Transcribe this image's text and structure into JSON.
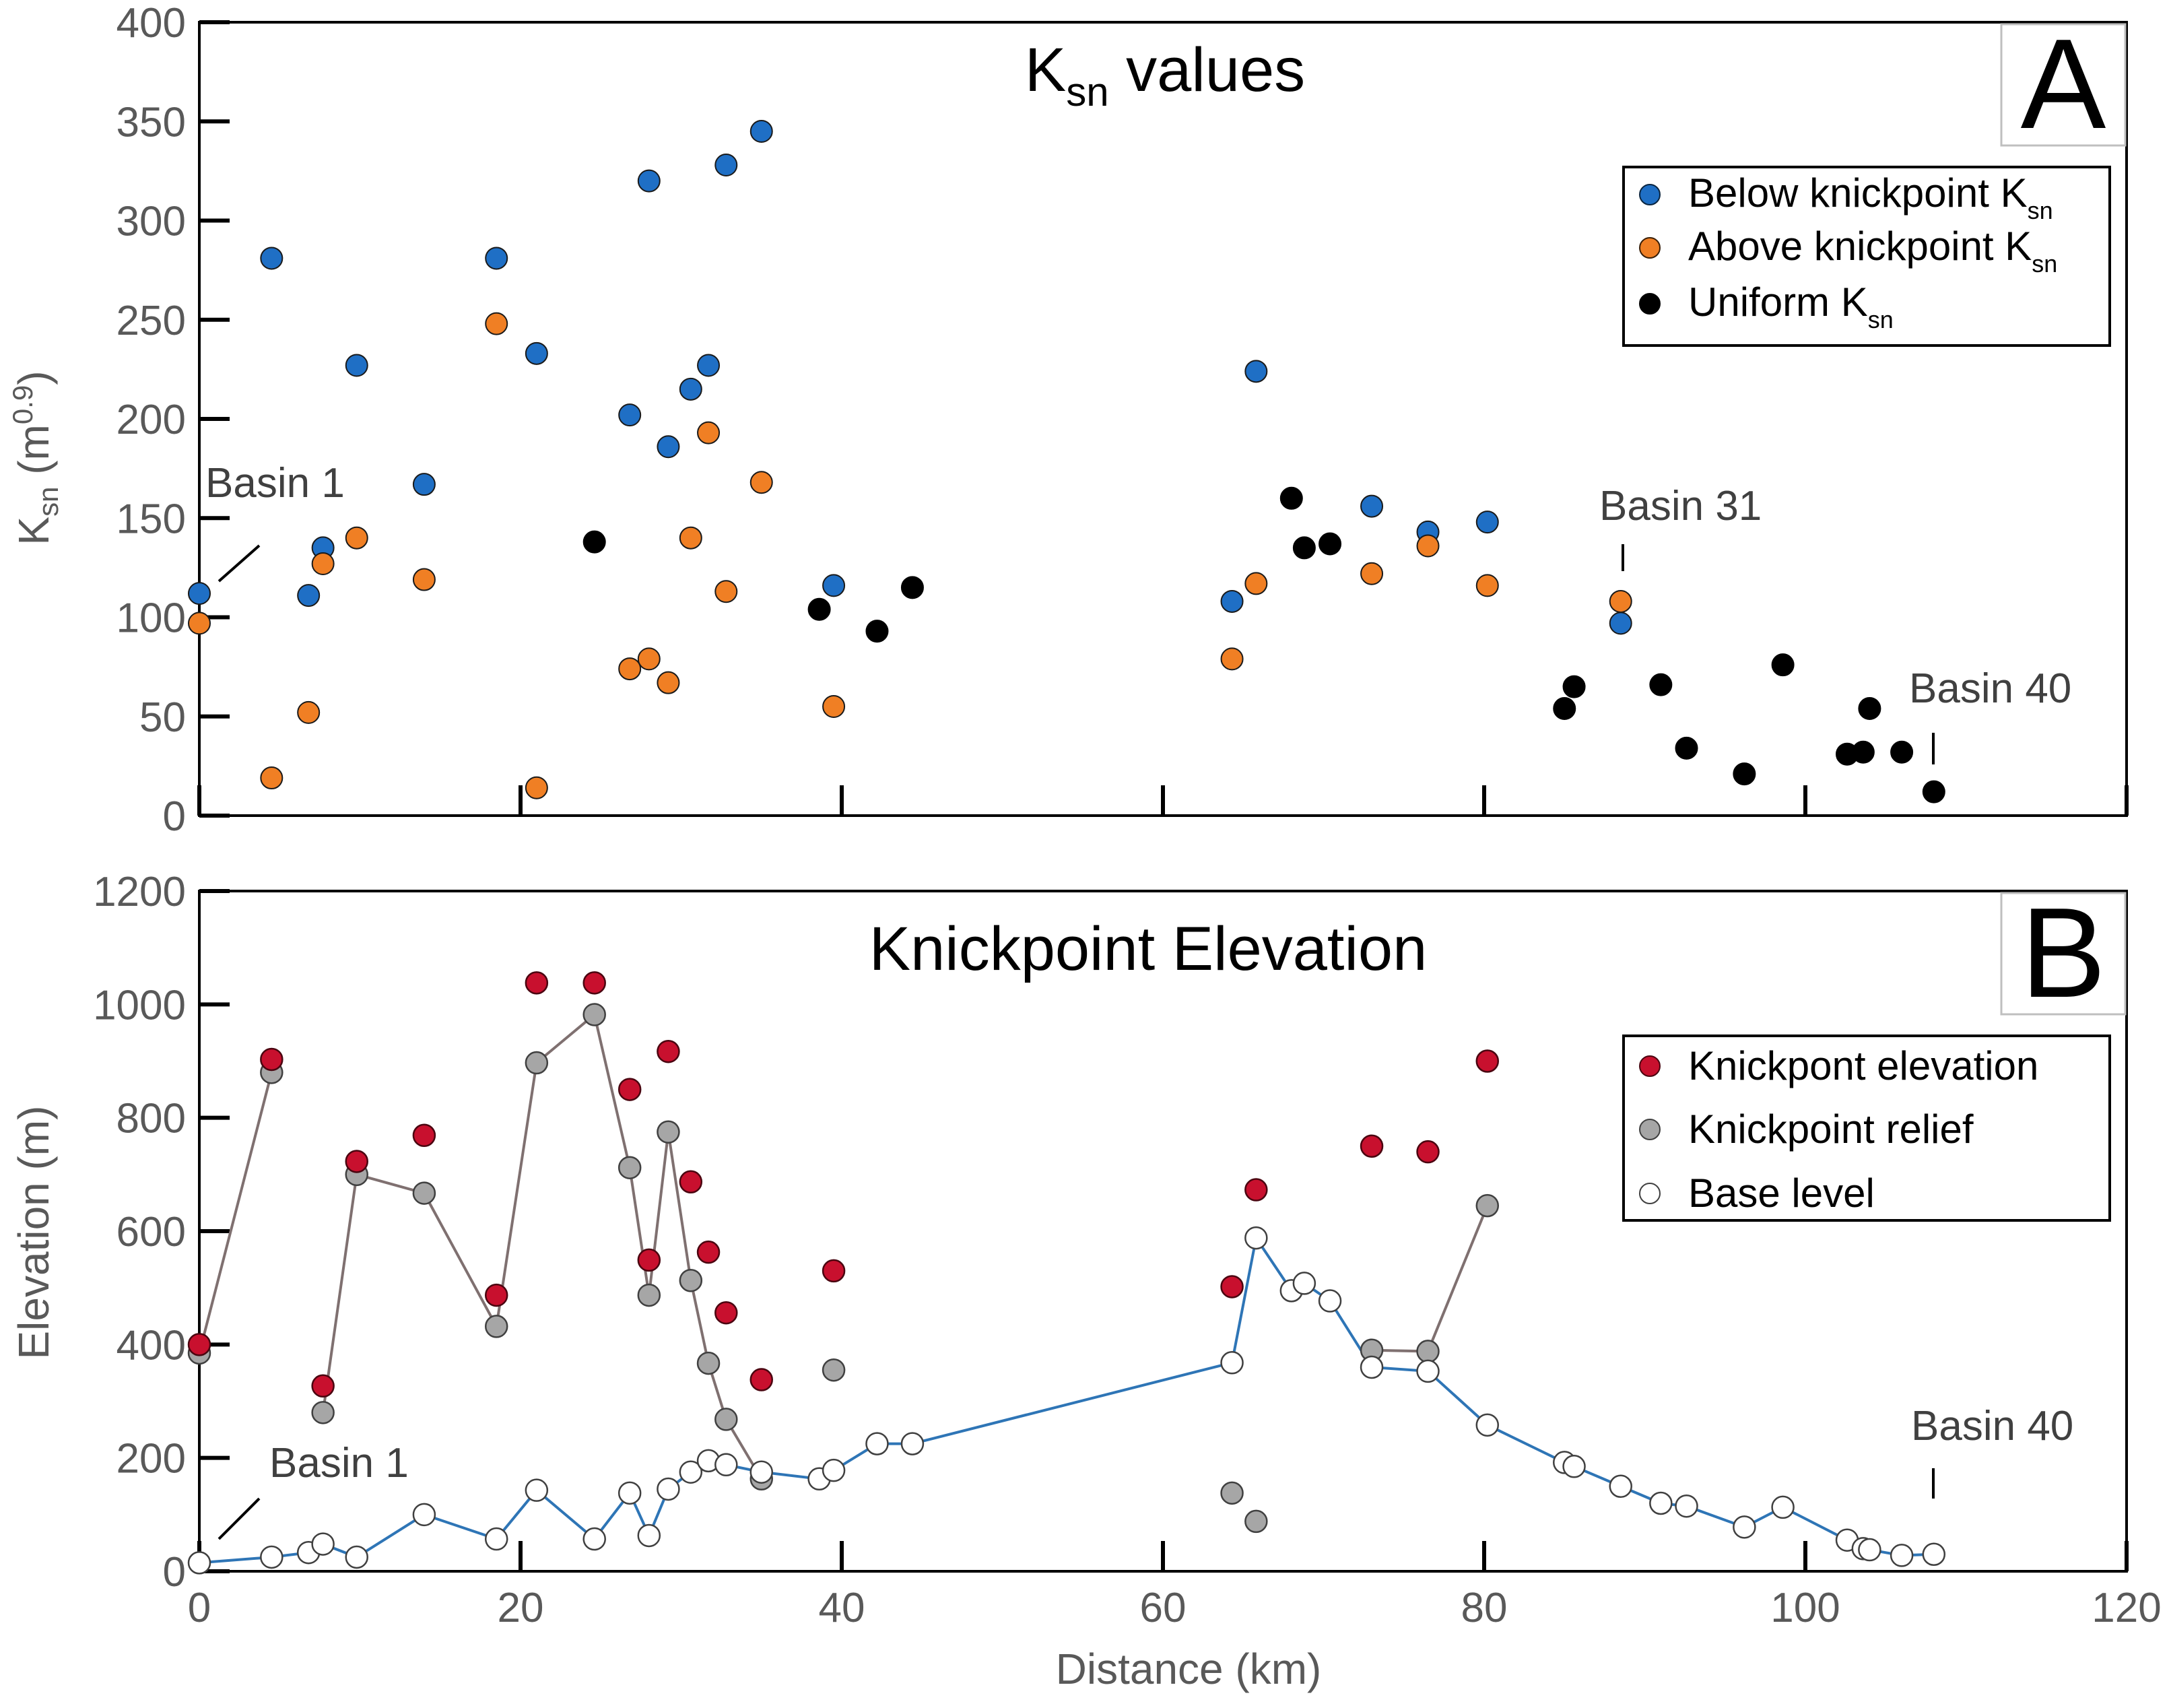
{
  "chart_data": [
    {
      "panel": "A",
      "type": "scatter",
      "title": "K",
      "title_sub": "sn",
      "title_rest": " values",
      "ylabel": "K",
      "ylabel_sub": "sn",
      "ylabel_rest": " (m",
      "ylabel_sup": "0.9",
      "ylabel_end": ")",
      "xlim": [
        0,
        120
      ],
      "ylim": [
        0,
        400
      ],
      "yticks": [
        "0",
        "50",
        "100",
        "150",
        "200",
        "250",
        "300",
        "350",
        "400"
      ],
      "xticks": [
        0,
        20,
        40,
        60,
        80,
        100,
        120
      ],
      "legend": [
        {
          "label": "Below knickpoint K",
          "sub": "sn",
          "color": "#1f6fc5"
        },
        {
          "label": "Above knickpoint K",
          "sub": "sn",
          "color": "#f07f24"
        },
        {
          "label": "Uniform K",
          "sub": "sn",
          "color": "#000000"
        }
      ],
      "annotations": [
        {
          "text": "Basin 1",
          "x": 0,
          "y": 112
        },
        {
          "text": "Basin 31",
          "x": 88.5,
          "y": 108
        },
        {
          "text": "Basin 40",
          "x": 107.5,
          "y": 12
        }
      ],
      "series": [
        {
          "name": "Below knickpoint Ksn",
          "color": "#1f6fc5",
          "points": [
            [
              0,
              112
            ],
            [
              4.5,
              281
            ],
            [
              6.8,
              111
            ],
            [
              7.7,
              135
            ],
            [
              9.8,
              227
            ],
            [
              14,
              167
            ],
            [
              18.5,
              281
            ],
            [
              21,
              233
            ],
            [
              26.8,
              202
            ],
            [
              28,
              320
            ],
            [
              29.2,
              186
            ],
            [
              30.6,
              215
            ],
            [
              31.7,
              227
            ],
            [
              32.8,
              328
            ],
            [
              35,
              345
            ],
            [
              39.5,
              116
            ],
            [
              64.3,
              108
            ],
            [
              65.8,
              224
            ],
            [
              73,
              156
            ],
            [
              76.5,
              143
            ],
            [
              80.2,
              148
            ],
            [
              88.5,
              97
            ]
          ]
        },
        {
          "name": "Above knickpoint Ksn",
          "color": "#f07f24",
          "points": [
            [
              0,
              97
            ],
            [
              4.5,
              19
            ],
            [
              6.8,
              52
            ],
            [
              7.7,
              127
            ],
            [
              9.8,
              140
            ],
            [
              14,
              119
            ],
            [
              18.5,
              248
            ],
            [
              21,
              14
            ],
            [
              26.8,
              74
            ],
            [
              28,
              79
            ],
            [
              29.2,
              67
            ],
            [
              30.6,
              140
            ],
            [
              31.7,
              193
            ],
            [
              32.8,
              113
            ],
            [
              35,
              168
            ],
            [
              39.5,
              55
            ],
            [
              64.3,
              79
            ],
            [
              65.8,
              117
            ],
            [
              73,
              122
            ],
            [
              76.5,
              136
            ],
            [
              80.2,
              116
            ],
            [
              88.5,
              108
            ]
          ]
        },
        {
          "name": "Uniform Ksn",
          "color": "#000000",
          "points": [
            [
              24.6,
              138
            ],
            [
              38.6,
              104
            ],
            [
              42.2,
              93
            ],
            [
              44.4,
              115
            ],
            [
              68,
              160
            ],
            [
              68.8,
              135
            ],
            [
              70.4,
              137
            ],
            [
              85,
              54
            ],
            [
              85.6,
              65
            ],
            [
              91,
              66
            ],
            [
              92.6,
              34
            ],
            [
              96.2,
              21
            ],
            [
              98.6,
              76
            ],
            [
              102.6,
              31
            ],
            [
              103.6,
              32
            ],
            [
              104,
              54
            ],
            [
              106,
              32
            ],
            [
              108,
              12
            ]
          ]
        }
      ]
    },
    {
      "panel": "B",
      "type": "line",
      "title": "Knickpoint Elevation",
      "ylabel": "Elevation (m)",
      "xlabel": "Distance (km)",
      "xlim": [
        0,
        120
      ],
      "ylim": [
        0,
        1200
      ],
      "yticks": [
        "0",
        "200",
        "400",
        "600",
        "800",
        "1000",
        "1200"
      ],
      "xticks": [
        "0",
        "20",
        "40",
        "60",
        "80",
        "100",
        "120"
      ],
      "legend": [
        {
          "label": "Knickpont elevation",
          "color": "#c8102e"
        },
        {
          "label": "Knickpoint relief",
          "color": "#a6a6a6"
        },
        {
          "label": "Base level",
          "color": "#ffffff"
        }
      ],
      "annotations": [
        {
          "text": "Basin 1",
          "x": 0,
          "y": 15
        },
        {
          "text": "Basin 40",
          "x": 107.5,
          "y": 30
        }
      ],
      "series": [
        {
          "name": "Knickpont elevation",
          "color": "#c8102e",
          "line": false,
          "points": [
            [
              0,
              400
            ],
            [
              4.5,
              903
            ],
            [
              7.7,
              327
            ],
            [
              9.8,
              723
            ],
            [
              14,
              769
            ],
            [
              18.5,
              487
            ],
            [
              21,
              1038
            ],
            [
              24.6,
              1038
            ],
            [
              26.8,
              850
            ],
            [
              28,
              549
            ],
            [
              29.2,
              917
            ],
            [
              30.6,
              687
            ],
            [
              31.7,
              563
            ],
            [
              32.8,
              456
            ],
            [
              35,
              338
            ],
            [
              39.5,
              530
            ],
            [
              64.3,
              502
            ],
            [
              65.8,
              673
            ],
            [
              73,
              750
            ],
            [
              76.5,
              740
            ],
            [
              80.2,
              900
            ]
          ]
        },
        {
          "name": "Knickpoint relief",
          "color": "#a6a6a6",
          "line_color": "#7f7070",
          "segments": [
            [
              [
                0,
                385
              ],
              [
                4.5,
                880
              ]
            ],
            [
              [
                7.7,
                280
              ],
              [
                9.8,
                700
              ],
              [
                14,
                667
              ],
              [
                18.5,
                432
              ],
              [
                21,
                897
              ],
              [
                24.6,
                982
              ],
              [
                26.8,
                712
              ],
              [
                28,
                487
              ],
              [
                29.2,
                775
              ],
              [
                30.6,
                513
              ],
              [
                31.7,
                367
              ],
              [
                32.8,
                268
              ],
              [
                35,
                163
              ]
            ],
            [
              [
                73,
                390
              ],
              [
                76.5,
                388
              ],
              [
                80.2,
                645
              ]
            ]
          ],
          "points": [
            [
              0,
              385
            ],
            [
              4.5,
              880
            ],
            [
              7.7,
              280
            ],
            [
              9.8,
              700
            ],
            [
              14,
              667
            ],
            [
              18.5,
              432
            ],
            [
              21,
              897
            ],
            [
              24.6,
              982
            ],
            [
              26.8,
              712
            ],
            [
              28,
              487
            ],
            [
              29.2,
              775
            ],
            [
              30.6,
              513
            ],
            [
              31.7,
              367
            ],
            [
              32.8,
              268
            ],
            [
              35,
              163
            ],
            [
              39.5,
              355
            ],
            [
              64.3,
              138
            ],
            [
              65.8,
              88
            ],
            [
              73,
              390
            ],
            [
              76.5,
              388
            ],
            [
              80.2,
              645
            ]
          ]
        },
        {
          "name": "Base level",
          "color": "#ffffff",
          "line_color": "#2e75b6",
          "points": [
            [
              0,
              15
            ],
            [
              4.5,
              25
            ],
            [
              6.8,
              33
            ],
            [
              7.7,
              48
            ],
            [
              9.8,
              25
            ],
            [
              14,
              100
            ],
            [
              18.5,
              57
            ],
            [
              21,
              143
            ],
            [
              24.6,
              57
            ],
            [
              26.8,
              138
            ],
            [
              28,
              63
            ],
            [
              29.2,
              145
            ],
            [
              30.6,
              175
            ],
            [
              31.7,
              195
            ],
            [
              32.8,
              188
            ],
            [
              35,
              175
            ],
            [
              38.6,
              163
            ],
            [
              39.5,
              178
            ],
            [
              42.2,
              225
            ],
            [
              44.4,
              225
            ],
            [
              64.3,
              368
            ],
            [
              65.8,
              588
            ],
            [
              68,
              495
            ],
            [
              68.8,
              508
            ],
            [
              70.4,
              477
            ],
            [
              73,
              360
            ],
            [
              76.5,
              353
            ],
            [
              80.2,
              258
            ],
            [
              85,
              192
            ],
            [
              85.6,
              185
            ],
            [
              88.5,
              150
            ],
            [
              91,
              120
            ],
            [
              92.6,
              115
            ],
            [
              96.2,
              78
            ],
            [
              98.6,
              113
            ],
            [
              102.6,
              55
            ],
            [
              103.6,
              40
            ],
            [
              104,
              38
            ],
            [
              106,
              28
            ],
            [
              108,
              30
            ]
          ]
        }
      ]
    }
  ]
}
